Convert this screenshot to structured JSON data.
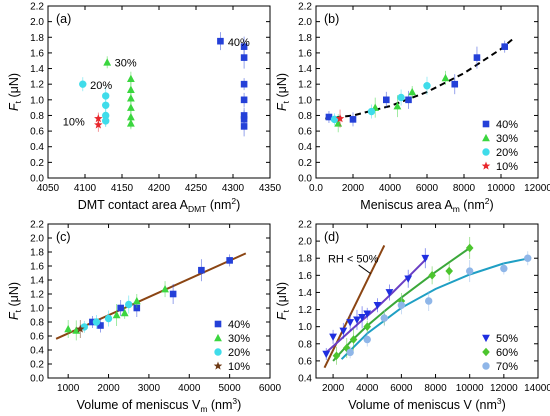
{
  "chart_data": [
    {
      "type": "scatter",
      "panel_label": "(a)",
      "xlabel": "DMT contact area A",
      "xlabel_sub": "DMT",
      "xlabel_unit_pre": " (nm",
      "xlabel_unit_sup": "2",
      "xlabel_unit_post": ")",
      "ylabel": "F",
      "ylabel_sub": "t",
      "ylabel_unit": " (μN)",
      "xlim": [
        4050,
        4350
      ],
      "ylim": [
        0.0,
        2.2
      ],
      "xticks": [
        4050,
        4100,
        4150,
        4200,
        4250,
        4300,
        4350
      ],
      "yticks": [
        0.0,
        0.2,
        0.4,
        0.6,
        0.8,
        1.0,
        1.2,
        1.4,
        1.6,
        1.8,
        2.0,
        2.2
      ],
      "series": [
        {
          "name": "10%",
          "color": "#e8262b",
          "marker": "star",
          "points": [
            {
              "x": 4118,
              "y": 0.76
            },
            {
              "x": 4118,
              "y": 0.68
            }
          ]
        },
        {
          "name": "20%",
          "color": "#3fdcea",
          "marker": "circle",
          "points": [
            {
              "x": 4128,
              "y": 1.05
            },
            {
              "x": 4128,
              "y": 0.93
            },
            {
              "x": 4128,
              "y": 0.8
            },
            {
              "x": 4128,
              "y": 0.73
            },
            {
              "x": 4097,
              "y": 1.2
            }
          ]
        },
        {
          "name": "30%",
          "color": "#3bd63f",
          "marker": "triangle",
          "points": [
            {
              "x": 4130,
              "y": 1.48
            },
            {
              "x": 4162,
              "y": 1.27
            },
            {
              "x": 4162,
              "y": 1.13
            },
            {
              "x": 4162,
              "y": 1.02
            },
            {
              "x": 4162,
              "y": 0.9
            },
            {
              "x": 4162,
              "y": 0.78
            },
            {
              "x": 4162,
              "y": 0.7
            }
          ]
        },
        {
          "name": "40%",
          "color": "#2440d8",
          "marker": "square",
          "points": [
            {
              "x": 4283,
              "y": 1.75
            },
            {
              "x": 4315,
              "y": 1.68
            },
            {
              "x": 4315,
              "y": 1.54
            },
            {
              "x": 4315,
              "y": 1.2
            },
            {
              "x": 4315,
              "y": 1.0
            },
            {
              "x": 4315,
              "y": 0.8
            },
            {
              "x": 4315,
              "y": 0.75
            },
            {
              "x": 4315,
              "y": 0.66
            }
          ]
        }
      ],
      "annotations": [
        {
          "text": "10%",
          "x": 4070,
          "y": 0.72
        },
        {
          "text": "20%",
          "x": 4107,
          "y": 1.19
        },
        {
          "text": "30%",
          "x": 4140,
          "y": 1.48
        },
        {
          "text": "40%",
          "x": 4293,
          "y": 1.74
        }
      ]
    },
    {
      "type": "scatter",
      "panel_label": "(b)",
      "xlabel": "Meniscus area A",
      "xlabel_sub": "m",
      "xlabel_unit_pre": " (nm",
      "xlabel_unit_sup": "2",
      "xlabel_unit_post": ")",
      "ylabel": "F",
      "ylabel_sub": "t",
      "ylabel_unit": " (μN)",
      "xlim": [
        0,
        12000
      ],
      "ylim": [
        0.0,
        2.2
      ],
      "xticks": [
        0,
        2000,
        4000,
        6000,
        8000,
        10000,
        12000
      ],
      "yticks": [
        0.0,
        0.2,
        0.4,
        0.6,
        0.8,
        1.0,
        1.2,
        1.4,
        1.6,
        1.8,
        2.0,
        2.2
      ],
      "legend": [
        "40%",
        "30%",
        "20%",
        "10%"
      ],
      "legend_position": "bottom-right",
      "series": [
        {
          "name": "40%",
          "color": "#2440d8",
          "marker": "square",
          "points": [
            {
              "x": 700,
              "y": 0.78
            },
            {
              "x": 2000,
              "y": 0.75
            },
            {
              "x": 3800,
              "y": 1.0
            },
            {
              "x": 5000,
              "y": 1.0
            },
            {
              "x": 7500,
              "y": 1.2
            },
            {
              "x": 8700,
              "y": 1.54
            },
            {
              "x": 10200,
              "y": 1.68
            }
          ]
        },
        {
          "name": "30%",
          "color": "#3bd63f",
          "marker": "triangle",
          "points": [
            {
              "x": 1200,
              "y": 0.7
            },
            {
              "x": 3200,
              "y": 0.9
            },
            {
              "x": 4400,
              "y": 0.92
            },
            {
              "x": 5200,
              "y": 1.1
            },
            {
              "x": 7000,
              "y": 1.28
            }
          ]
        },
        {
          "name": "20%",
          "color": "#3fdcea",
          "marker": "circle",
          "points": [
            {
              "x": 1000,
              "y": 0.75
            },
            {
              "x": 3000,
              "y": 0.85
            },
            {
              "x": 4600,
              "y": 1.03
            },
            {
              "x": 6000,
              "y": 1.18
            }
          ]
        },
        {
          "name": "10%",
          "color": "#e8262b",
          "marker": "star",
          "points": [
            {
              "x": 1300,
              "y": 0.76
            }
          ]
        }
      ],
      "fit": {
        "style": "dashed",
        "x": [
          500,
          2000,
          4000,
          6000,
          8000,
          10000,
          10600
        ],
        "y": [
          0.76,
          0.8,
          0.92,
          1.1,
          1.34,
          1.65,
          1.77
        ]
      }
    },
    {
      "type": "scatter",
      "panel_label": "(c)",
      "xlabel": "Volume of meniscus V",
      "xlabel_sub": "m",
      "xlabel_unit_pre": " (nm",
      "xlabel_unit_sup": "3",
      "xlabel_unit_post": ")",
      "ylabel": "F",
      "ylabel_sub": "t",
      "ylabel_unit": " (μN)",
      "xlim": [
        500,
        6000
      ],
      "ylim": [
        0.0,
        2.2
      ],
      "xticks": [
        1000,
        2000,
        3000,
        4000,
        5000,
        6000
      ],
      "yticks": [
        0.0,
        0.2,
        0.4,
        0.6,
        0.8,
        1.0,
        1.2,
        1.4,
        1.6,
        1.8,
        2.0,
        2.2
      ],
      "legend": [
        "40%",
        "30%",
        "20%",
        "10%"
      ],
      "legend_position": "bottom-right",
      "series": [
        {
          "name": "40%",
          "color": "#2440d8",
          "marker": "square",
          "points": [
            {
              "x": 1600,
              "y": 0.8
            },
            {
              "x": 1800,
              "y": 0.75
            },
            {
              "x": 2300,
              "y": 1.0
            },
            {
              "x": 2700,
              "y": 1.0
            },
            {
              "x": 3600,
              "y": 1.2
            },
            {
              "x": 4300,
              "y": 1.54
            },
            {
              "x": 5000,
              "y": 1.68
            }
          ]
        },
        {
          "name": "30%",
          "color": "#3bd63f",
          "marker": "triangle",
          "points": [
            {
              "x": 1000,
              "y": 0.7
            },
            {
              "x": 1200,
              "y": 0.68
            },
            {
              "x": 2200,
              "y": 0.9
            },
            {
              "x": 2400,
              "y": 0.93
            },
            {
              "x": 2700,
              "y": 1.1
            },
            {
              "x": 3400,
              "y": 1.27
            }
          ]
        },
        {
          "name": "20%",
          "color": "#3fdcea",
          "marker": "circle",
          "points": [
            {
              "x": 1400,
              "y": 0.73
            },
            {
              "x": 1700,
              "y": 0.8
            },
            {
              "x": 2000,
              "y": 0.85
            },
            {
              "x": 2500,
              "y": 1.05
            }
          ]
        },
        {
          "name": "10%",
          "color": "#6e3a16",
          "marker": "star",
          "points": [
            {
              "x": 1300,
              "y": 0.7
            }
          ]
        }
      ],
      "fit": {
        "style": "solid",
        "color": "#8b4513",
        "x": [
          700,
          5400
        ],
        "y": [
          0.56,
          1.78
        ]
      }
    },
    {
      "type": "scatter",
      "panel_label": "(d)",
      "xlabel": "Volume of meniscus V",
      "xlabel_sub": "",
      "xlabel_unit_pre": " (nm",
      "xlabel_unit_sup": "3",
      "xlabel_unit_post": ")",
      "ylabel": "F",
      "ylabel_sub": "t",
      "ylabel_unit": " (μN)",
      "xlim": [
        1000,
        14000
      ],
      "ylim": [
        0.4,
        2.2
      ],
      "xticks": [
        2000,
        4000,
        6000,
        8000,
        10000,
        12000,
        14000
      ],
      "yticks": [
        0.4,
        0.6,
        0.8,
        1.0,
        1.2,
        1.4,
        1.6,
        1.8,
        2.0,
        2.2
      ],
      "legend": [
        "50%",
        "60%",
        "70%"
      ],
      "legend_position": "bottom-right",
      "annotation": "RH < 50%",
      "series": [
        {
          "name": "50%",
          "color": "#1f2ee0",
          "marker": "triangle-down",
          "points": [
            {
              "x": 1600,
              "y": 0.68
            },
            {
              "x": 2000,
              "y": 0.88
            },
            {
              "x": 2600,
              "y": 0.95
            },
            {
              "x": 3000,
              "y": 1.05
            },
            {
              "x": 3400,
              "y": 1.08
            },
            {
              "x": 3700,
              "y": 1.11
            },
            {
              "x": 4000,
              "y": 1.15
            },
            {
              "x": 4600,
              "y": 1.25
            },
            {
              "x": 5300,
              "y": 1.4
            },
            {
              "x": 6400,
              "y": 1.56
            },
            {
              "x": 7400,
              "y": 1.8
            }
          ]
        },
        {
          "name": "60%",
          "color": "#4cc52e",
          "marker": "diamond",
          "points": [
            {
              "x": 2200,
              "y": 0.66
            },
            {
              "x": 2800,
              "y": 0.75
            },
            {
              "x": 3200,
              "y": 0.85
            },
            {
              "x": 4000,
              "y": 1.0
            },
            {
              "x": 5000,
              "y": 1.1
            },
            {
              "x": 6000,
              "y": 1.3
            },
            {
              "x": 7800,
              "y": 1.6
            },
            {
              "x": 8800,
              "y": 1.65
            },
            {
              "x": 10000,
              "y": 1.92
            }
          ]
        },
        {
          "name": "70%",
          "color": "#8fb6e8",
          "marker": "circle",
          "points": [
            {
              "x": 3000,
              "y": 0.7
            },
            {
              "x": 4000,
              "y": 0.85
            },
            {
              "x": 5000,
              "y": 1.1
            },
            {
              "x": 6000,
              "y": 1.25
            },
            {
              "x": 7600,
              "y": 1.3
            },
            {
              "x": 10000,
              "y": 1.65
            },
            {
              "x": 12000,
              "y": 1.68
            },
            {
              "x": 13400,
              "y": 1.8
            }
          ]
        }
      ],
      "fits": [
        {
          "color": "#8b4513",
          "x": [
            1500,
            5000
          ],
          "y": [
            0.52,
            1.95
          ]
        },
        {
          "color": "#6a3ec4",
          "x": [
            1500,
            2500,
            3500,
            4500,
            5500,
            6500,
            7500
          ],
          "y": [
            0.68,
            0.86,
            1.04,
            1.21,
            1.4,
            1.6,
            1.8
          ]
        },
        {
          "color": "#3ba83a",
          "x": [
            2000,
            3000,
            4000,
            5000,
            6000,
            7000,
            8000,
            9000,
            10000
          ],
          "y": [
            0.6,
            0.82,
            1.01,
            1.18,
            1.34,
            1.49,
            1.64,
            1.78,
            1.92
          ]
        },
        {
          "color": "#1f9fc4",
          "x": [
            2500,
            4000,
            6000,
            8000,
            10000,
            12000,
            13500
          ],
          "y": [
            0.62,
            0.92,
            1.22,
            1.44,
            1.61,
            1.74,
            1.8
          ]
        }
      ]
    }
  ]
}
